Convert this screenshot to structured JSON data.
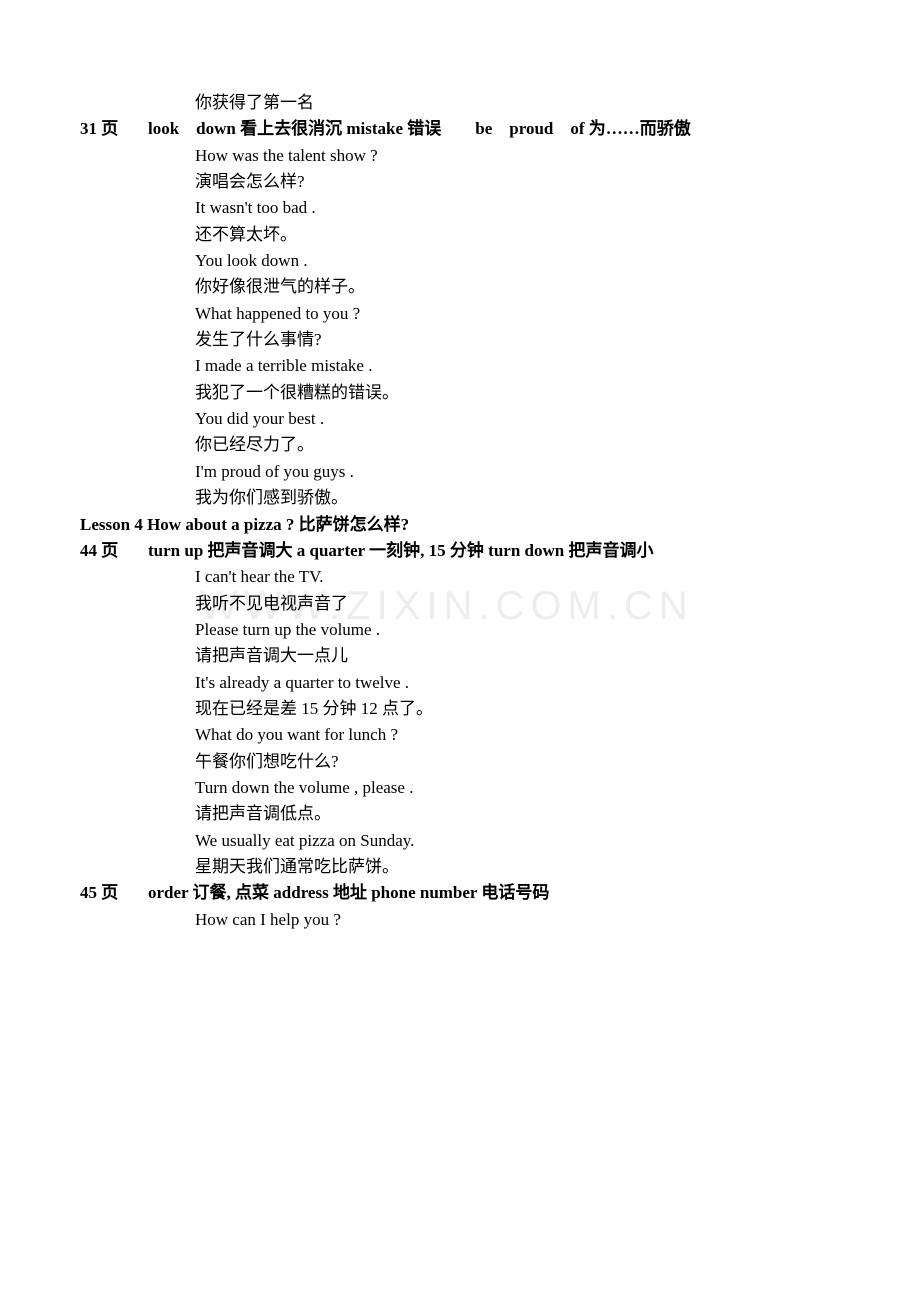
{
  "watermark_text": "WWW.ZIXIN.COM.CN",
  "top_line": "你获得了第一名",
  "section1": {
    "header_prefix": "31 页",
    "header_rest": "look down 看上去很消沉 mistake 错误  be proud of 为……而骄傲",
    "lines": [
      {
        "en": "How   was   the   talent   show ?",
        "zh": "  演唱会怎么样?"
      },
      {
        "en": "It   wasn't   too   bad .",
        "zh": "  还不算太坏。"
      },
      {
        "en": "You   look   down .",
        "zh": " 你好像很泄气的样子。"
      },
      {
        "en": "What   happened   to   you ?",
        "zh": "  发生了什么事情?"
      },
      {
        "en": "I   made   a   terrible   mistake .",
        "zh": "    我犯了一个很糟糕的错误。"
      },
      {
        "en": "You   did   your   best .",
        "zh": "  你已经尽力了。"
      },
      {
        "en": "I'm   proud   of   you   guys .",
        "zh": "  我为你们感到骄傲。"
      }
    ]
  },
  "lesson_line": "Lesson    4   How   about   a   pizza  ?   比萨饼怎么样?",
  "section2": {
    "header_prefix": "44 页",
    "header_rest": "turn   up 把声音调大    a    quarter 一刻钟, 15 分钟     turn   down  把声音调小",
    "lines": [
      {
        "en": "I   can't   hear   the   TV.",
        "zh": " 我听不见电视声音了"
      },
      {
        "en": "Please   turn   up   the   volume .",
        "zh": " 请把声音调大一点儿"
      },
      {
        "en": "It's   already   a   quarter   to   twelve .",
        "zh": "  现在已经是差 15 分钟 12 点了。"
      },
      {
        "en": "What   do   you   want   for   lunch ?",
        "zh": "   午餐你们想吃什么?"
      },
      {
        "en": "Turn   down   the   volume , please .",
        "zh": "    请把声音调低点。"
      },
      {
        "en": "We   usually   eat   pizza   on   Sunday.",
        "zh": "  星期天我们通常吃比萨饼。"
      }
    ]
  },
  "section3": {
    "header_prefix": "45 页",
    "header_rest": "order 订餐, 点菜    address 地址   phone   number 电话号码",
    "lines": [
      {
        "en": "How   can   I   help   you ?",
        "zh": ""
      }
    ]
  }
}
